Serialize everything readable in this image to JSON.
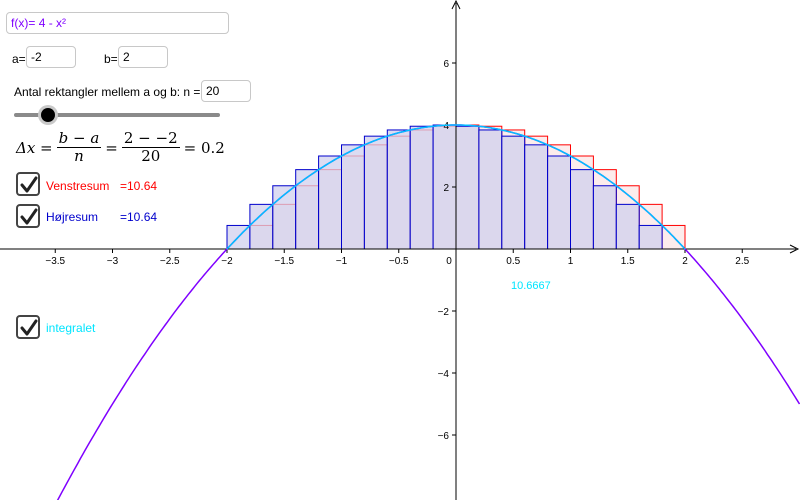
{
  "function_input": {
    "label": "f(x)=",
    "value": "4 - x²",
    "color": "#7f00ff"
  },
  "a_input": {
    "label": "a=",
    "value": "-2"
  },
  "b_input": {
    "label": "b=",
    "value": "2"
  },
  "n_input": {
    "label": "Antal rektangler mellem a og b: n =",
    "value": "20"
  },
  "slider": {
    "min": 1,
    "max": 100,
    "value": 20
  },
  "formula": {
    "delta": "Δx =",
    "num1": "b − a",
    "den1": "n",
    "eq1": "=",
    "num2": "2 − −2",
    "den2": "20",
    "result": "= 0.2"
  },
  "checkboxes": {
    "venstre": {
      "label": "Venstresum",
      "value_text": "=10.64",
      "checked": true,
      "color": "#ff0000"
    },
    "hojre": {
      "label": "Højresum",
      "value_text": "=10.64",
      "checked": true,
      "color": "#0000cc"
    },
    "integral": {
      "label": "integralet",
      "checked": true,
      "color": "#00e5ff"
    }
  },
  "integral_value": "10.6667",
  "chart_data": {
    "type": "line",
    "function": "4 - x^2",
    "x_range": [
      -4,
      3
    ],
    "y_range": [
      -8,
      8
    ],
    "a": -2,
    "b": 2,
    "n": 20,
    "x_ticks": [
      -3.5,
      -3,
      -2.5,
      -2,
      -1.5,
      -1,
      -0.5,
      0,
      0.5,
      1,
      1.5,
      2,
      2.5
    ],
    "x_tick_labels": [
      "−3.5",
      "−3",
      "−2.5",
      "−2",
      "−1.5",
      "−1",
      "−0.5",
      "0",
      "0.5",
      "1",
      "1.5",
      "2",
      "2.5"
    ],
    "y_ticks": [
      6,
      4,
      2,
      -2,
      -4,
      -6
    ],
    "y_tick_labels": [
      "6",
      "4",
      "2",
      "−2",
      "−4",
      "−6"
    ],
    "colors": {
      "function": "#7f00ff",
      "integral_curve": "#00bfff",
      "left_rect_stroke": "#ff0000",
      "right_rect_stroke": "#0000cc",
      "right_rect_fill": "#d0d0ee",
      "left_rect_fill": "#fbe4e4"
    }
  }
}
